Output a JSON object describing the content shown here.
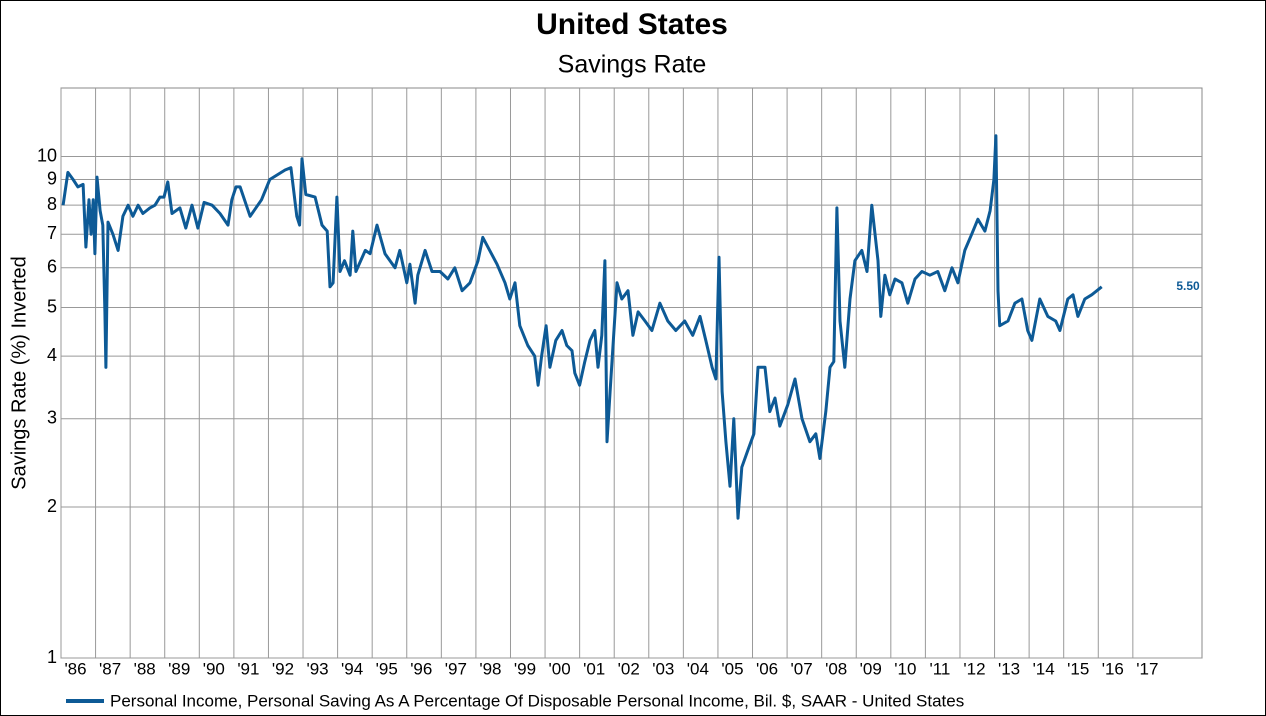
{
  "chart_data": {
    "type": "line",
    "title": "United States",
    "subtitle": "Savings Rate",
    "y_label": "Savings Rate (%) Inverted",
    "log_scale_y": true,
    "grid": true,
    "legend": "bottom",
    "annotation": "5.50",
    "xlim": [
      1986,
      2019
    ],
    "xticks": [
      {
        "value": 1986,
        "label": "'86"
      },
      {
        "value": 1987,
        "label": "'87"
      },
      {
        "value": 1988,
        "label": "'88"
      },
      {
        "value": 1989,
        "label": "'89"
      },
      {
        "value": 1990,
        "label": "'90"
      },
      {
        "value": 1991,
        "label": "'91"
      },
      {
        "value": 1992,
        "label": "'92"
      },
      {
        "value": 1993,
        "label": "'93"
      },
      {
        "value": 1994,
        "label": "'94"
      },
      {
        "value": 1995,
        "label": "'95"
      },
      {
        "value": 1996,
        "label": "'96"
      },
      {
        "value": 1997,
        "label": "'97"
      },
      {
        "value": 1998,
        "label": "'98"
      },
      {
        "value": 1999,
        "label": "'99"
      },
      {
        "value": 2000,
        "label": "'00"
      },
      {
        "value": 2001,
        "label": "'01"
      },
      {
        "value": 2002,
        "label": "'02"
      },
      {
        "value": 2003,
        "label": "'03"
      },
      {
        "value": 2004,
        "label": "'04"
      },
      {
        "value": 2005,
        "label": "'05"
      },
      {
        "value": 2006,
        "label": "'06"
      },
      {
        "value": 2007,
        "label": "'07"
      },
      {
        "value": 2008,
        "label": "'08"
      },
      {
        "value": 2009,
        "label": "'09"
      },
      {
        "value": 2010,
        "label": "'10"
      },
      {
        "value": 2011,
        "label": "'11"
      },
      {
        "value": 2012,
        "label": "'12"
      },
      {
        "value": 2013,
        "label": "'13"
      },
      {
        "value": 2014,
        "label": "'14"
      },
      {
        "value": 2015,
        "label": "'15"
      },
      {
        "value": 2016,
        "label": "'16"
      },
      {
        "value": 2017,
        "label": "'17"
      }
    ],
    "ylim": [
      1,
      13.7
    ],
    "yticks": [
      1,
      2,
      3,
      4,
      5,
      6,
      7,
      8,
      9,
      10
    ],
    "series": [
      {
        "name": "Personal Income, Personal Saving As A Percentage Of Disposable Personal Income, Bil. $, SAAR - United States",
        "color": "#0d5a96",
        "x": [
          1986.06,
          1986.2,
          1986.35,
          1986.49,
          1986.64,
          1986.72,
          1986.81,
          1986.87,
          1986.93,
          1986.98,
          1987.04,
          1987.13,
          1987.21,
          1987.27,
          1987.3,
          1987.36,
          1987.5,
          1987.65,
          1987.79,
          1987.94,
          1988.08,
          1988.23,
          1988.37,
          1988.57,
          1988.72,
          1988.86,
          1988.98,
          1989.09,
          1989.21,
          1989.44,
          1989.61,
          1989.79,
          1989.96,
          1990.14,
          1990.37,
          1990.6,
          1990.83,
          1990.94,
          1991.06,
          1991.18,
          1991.47,
          1991.8,
          1992.04,
          1992.48,
          1992.65,
          1992.82,
          1992.9,
          1992.97,
          1993.08,
          1993.35,
          1993.55,
          1993.7,
          1993.78,
          1993.87,
          1993.98,
          1994.07,
          1994.2,
          1994.36,
          1994.44,
          1994.53,
          1994.8,
          1994.94,
          1995.14,
          1995.37,
          1995.66,
          1995.8,
          1996.0,
          1996.09,
          1996.24,
          1996.32,
          1996.53,
          1996.73,
          1996.96,
          1997.19,
          1997.39,
          1997.6,
          1997.83,
          1998.06,
          1998.2,
          1998.4,
          1998.61,
          1998.84,
          1998.98,
          1999.13,
          1999.27,
          1999.5,
          1999.7,
          1999.8,
          1999.9,
          2000.03,
          2000.14,
          2000.31,
          2000.49,
          2000.63,
          2000.78,
          2000.86,
          2001.0,
          2001.15,
          2001.3,
          2001.44,
          2001.53,
          2001.64,
          2001.73,
          2001.79,
          2001.88,
          2002.08,
          2002.22,
          2002.4,
          2002.54,
          2002.69,
          2002.89,
          2003.09,
          2003.32,
          2003.55,
          2003.78,
          2004.04,
          2004.27,
          2004.48,
          2004.65,
          2004.83,
          2004.94,
          2005.03,
          2005.12,
          2005.23,
          2005.35,
          2005.46,
          2005.58,
          2005.69,
          2005.87,
          2006.04,
          2006.16,
          2006.36,
          2006.5,
          2006.65,
          2006.79,
          2007.02,
          2007.23,
          2007.43,
          2007.66,
          2007.83,
          2007.95,
          2008.12,
          2008.24,
          2008.35,
          2008.44,
          2008.53,
          2008.67,
          2008.82,
          2008.96,
          2009.16,
          2009.31,
          2009.45,
          2009.63,
          2009.71,
          2009.83,
          2009.97,
          2010.12,
          2010.32,
          2010.49,
          2010.7,
          2010.9,
          2011.13,
          2011.36,
          2011.56,
          2011.77,
          2011.94,
          2012.14,
          2012.34,
          2012.52,
          2012.72,
          2012.87,
          2012.98,
          2013.04,
          2013.1,
          2013.15,
          2013.39,
          2013.59,
          2013.79,
          2013.96,
          2014.08,
          2014.31,
          2014.54,
          2014.77,
          2014.89,
          2015.12,
          2015.27,
          2015.41,
          2015.61,
          2015.81,
          2015.96,
          2016.1
        ],
        "values": [
          8.0,
          9.3,
          9.0,
          8.7,
          8.8,
          6.6,
          8.2,
          7.0,
          8.2,
          6.4,
          9.1,
          7.8,
          7.3,
          4.9,
          3.8,
          7.4,
          7.0,
          6.5,
          7.6,
          8.0,
          7.6,
          8.0,
          7.7,
          7.9,
          8.0,
          8.3,
          8.3,
          8.9,
          7.7,
          7.9,
          7.2,
          8.0,
          7.2,
          8.1,
          8.0,
          7.7,
          7.3,
          8.2,
          8.7,
          8.7,
          7.6,
          8.2,
          9.0,
          9.4,
          9.5,
          7.6,
          7.3,
          9.9,
          8.4,
          8.3,
          7.3,
          7.1,
          5.5,
          5.6,
          8.3,
          5.9,
          6.2,
          5.8,
          7.1,
          5.9,
          6.5,
          6.4,
          7.3,
          6.4,
          6.0,
          6.5,
          5.6,
          6.1,
          5.1,
          5.8,
          6.5,
          5.9,
          5.9,
          5.7,
          6.0,
          5.4,
          5.6,
          6.2,
          6.9,
          6.5,
          6.1,
          5.6,
          5.2,
          5.6,
          4.6,
          4.2,
          4.0,
          3.5,
          4.0,
          4.6,
          3.8,
          4.3,
          4.5,
          4.2,
          4.1,
          3.7,
          3.5,
          3.9,
          4.3,
          4.5,
          3.8,
          4.4,
          6.2,
          2.7,
          3.4,
          5.6,
          5.2,
          5.4,
          4.4,
          4.9,
          4.7,
          4.5,
          5.1,
          4.7,
          4.5,
          4.7,
          4.4,
          4.8,
          4.3,
          3.8,
          3.6,
          6.3,
          3.4,
          2.7,
          2.2,
          3.0,
          1.9,
          2.4,
          2.6,
          2.8,
          3.8,
          3.8,
          3.1,
          3.3,
          2.9,
          3.2,
          3.6,
          3.0,
          2.7,
          2.8,
          2.5,
          3.1,
          3.8,
          3.9,
          7.9,
          4.7,
          3.8,
          5.2,
          6.2,
          6.5,
          5.9,
          8.0,
          6.2,
          4.8,
          5.8,
          5.3,
          5.7,
          5.6,
          5.1,
          5.7,
          5.9,
          5.8,
          5.9,
          5.4,
          6.0,
          5.6,
          6.5,
          7.0,
          7.5,
          7.1,
          7.8,
          9.0,
          11.0,
          5.4,
          4.6,
          4.7,
          5.1,
          5.2,
          4.5,
          4.3,
          5.2,
          4.8,
          4.7,
          4.5,
          5.2,
          5.3,
          4.8,
          5.2,
          5.3,
          5.4,
          5.5
        ]
      }
    ]
  }
}
